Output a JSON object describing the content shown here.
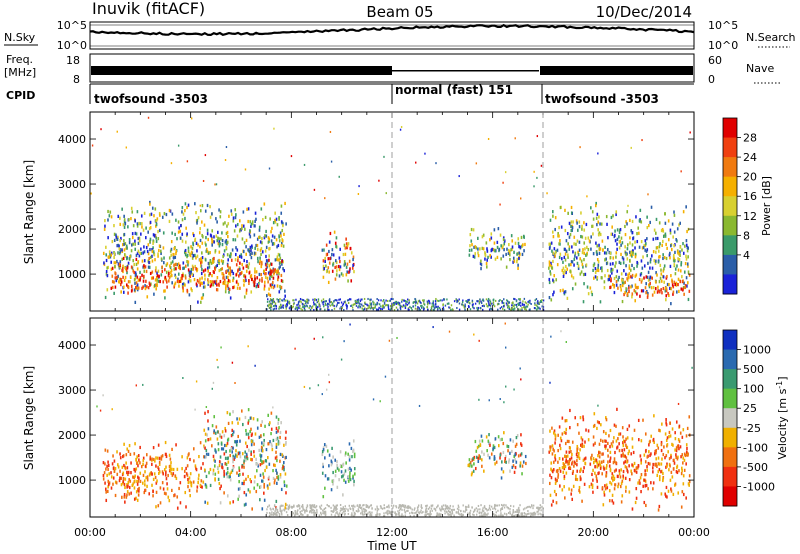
{
  "header": {
    "station": "Inuvik (fitACF)",
    "beam": "Beam 05",
    "date": "10/Dec/2014"
  },
  "noise_panel": {
    "left_label": "N.Sky",
    "right_label": "N.Search",
    "left_ticks": [
      "10^5",
      "10^0"
    ],
    "right_ticks": [
      "10^5",
      "10^0"
    ]
  },
  "freq_panel": {
    "left_label_1": "Freq.",
    "left_label_2": "[MHz]",
    "left_ticks": [
      "18",
      "8"
    ],
    "right_label": "Nave",
    "right_ticks": [
      "60",
      "0"
    ]
  },
  "cpid": {
    "label": "CPID",
    "segments": [
      {
        "start": 0,
        "end": 12,
        "name": "twofsound -3503"
      },
      {
        "start": 12,
        "end": 18,
        "name": "normal (fast) 151"
      },
      {
        "start": 18,
        "end": 24,
        "name": "twofsound -3503"
      }
    ]
  },
  "axes": {
    "x_label": "Time UT",
    "x_ticks": [
      "00:00",
      "04:00",
      "08:00",
      "12:00",
      "16:00",
      "20:00",
      "00:00"
    ],
    "y_label": "Slant Range [km]",
    "y_ticks": [
      "1000",
      "2000",
      "3000",
      "4000"
    ]
  },
  "chart_data": [
    {
      "type": "heatmap",
      "title": "",
      "xlabel": "Time UT",
      "ylabel": "Slant Range [km]",
      "xlim": [
        0,
        24
      ],
      "ylim": [
        180,
        4600
      ],
      "colorbar": {
        "label": "Power [dB]",
        "ticks": [
          "28",
          "24",
          "20",
          "16",
          "12",
          "8",
          "4"
        ],
        "colors": [
          "#e00000",
          "#f04010",
          "#f07a10",
          "#f5b000",
          "#d8d030",
          "#8ab830",
          "#3a9a6a",
          "#2a5ea8",
          "#1a22d8"
        ]
      },
      "regions": [
        {
          "t_start": 0.5,
          "t_end": 7.8,
          "r_low": 300,
          "r_high": 2700,
          "level": "low-mid"
        },
        {
          "t_start": 0.8,
          "t_end": 7.6,
          "r_low": 500,
          "r_high": 1400,
          "level": "high"
        },
        {
          "t_start": 9.2,
          "t_end": 10.5,
          "r_low": 600,
          "r_high": 2000,
          "level": "mixed"
        },
        {
          "t_start": 15.0,
          "t_end": 17.3,
          "r_low": 1000,
          "r_high": 2100,
          "level": "low-mid"
        },
        {
          "t_start": 18.2,
          "t_end": 23.8,
          "r_low": 300,
          "r_high": 2600,
          "level": "low-mid"
        },
        {
          "t_start": 20.5,
          "t_end": 23.8,
          "r_low": 400,
          "r_high": 1000,
          "level": "high"
        }
      ]
    },
    {
      "type": "heatmap",
      "title": "",
      "xlabel": "Time UT",
      "ylabel": "Slant Range [km]",
      "xlim": [
        0,
        24
      ],
      "ylim": [
        180,
        4600
      ],
      "colorbar": {
        "label": "Velocity [m s^-1]",
        "ticks": [
          "1000",
          "500",
          "100",
          "25",
          "-25",
          "-100",
          "-500",
          "-1000"
        ],
        "colors": [
          "#1030c0",
          "#2a6ab0",
          "#3a9a70",
          "#60c040",
          "#c8c8c0",
          "#f0b000",
          "#f07010",
          "#f03010",
          "#e00000"
        ]
      },
      "regions": [
        {
          "t_start": 0.5,
          "t_end": 4.5,
          "r_low": 300,
          "r_high": 1900,
          "sign": "negative"
        },
        {
          "t_start": 4.5,
          "t_end": 7.8,
          "r_low": 300,
          "r_high": 2700,
          "sign": "mixed"
        },
        {
          "t_start": 9.2,
          "t_end": 10.5,
          "r_low": 600,
          "r_high": 2000,
          "sign": "positive"
        },
        {
          "t_start": 15.0,
          "t_end": 17.3,
          "r_low": 1000,
          "r_high": 2100,
          "sign": "mixed"
        },
        {
          "t_start": 18.2,
          "t_end": 23.8,
          "r_low": 300,
          "r_high": 2600,
          "sign": "negative"
        }
      ]
    }
  ]
}
